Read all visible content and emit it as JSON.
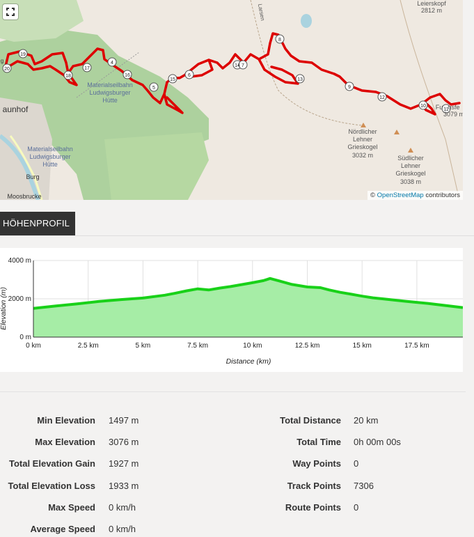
{
  "map": {
    "labels": {
      "peak_top": "Leierskopf",
      "peak_top_elev": "2812 m",
      "cable1_a": "Materialseilbahn",
      "cable1_b": "Ludwigsburger",
      "cable1_c": "Hütte",
      "cable2_a": "Materialseilbahn",
      "cable2_b": "Ludwigsburger",
      "cable2_c": "Hütte",
      "village": "aunhof",
      "burg": "Burg",
      "moos": "Moosbrucke",
      "nord_a": "Nördlicher",
      "nord_b": "Lehner",
      "nord_c": "Grieskogel",
      "nord_elev": "3032 m",
      "sud_a": "Südlicher",
      "sud_b": "Lehner",
      "sud_c": "Grieskogel",
      "sud_elev": "3038 m",
      "fund_a": "Fu",
      "fund_b": "usfe",
      "fund_elev": "3079 m",
      "road": "Larsen",
      "edge_g": "g"
    },
    "waypoints": [
      "20",
      "19",
      "18",
      "17",
      "4",
      "16",
      "5",
      "15",
      "6",
      "14",
      "7",
      "8",
      "13",
      "9",
      "12",
      "10",
      "11"
    ],
    "attribution": {
      "symbol": "©",
      "link": "OpenStreetMap",
      "suffix": "contributors"
    },
    "fullscreen_icon": "fullscreen-icon"
  },
  "tab": {
    "label": "HÖHENPROFIL"
  },
  "chart_data": {
    "type": "area",
    "title": "",
    "xlabel": "Distance (km)",
    "ylabel": "Elevation (m)",
    "x_ticks": [
      "0 km",
      "2.5 km",
      "5 km",
      "7.5 km",
      "10 km",
      "12.5 km",
      "15 km",
      "17.5 km"
    ],
    "y_ticks": [
      "0 m",
      "2000 m",
      "4000 m"
    ],
    "xlim": [
      0,
      19.6
    ],
    "ylim": [
      0,
      4000
    ],
    "grid": true,
    "series": [
      {
        "x": [
          0,
          1,
          2,
          3,
          4,
          5,
          6,
          6.5,
          7,
          7.5,
          8,
          8.5,
          9,
          9.5,
          10,
          10.5,
          10.8,
          11.2,
          11.8,
          12.5,
          13.1,
          13.5,
          14,
          14.5,
          15,
          15.5,
          16,
          17,
          18,
          19,
          19.6
        ],
        "y": [
          1500,
          1620,
          1740,
          1860,
          1960,
          2040,
          2190,
          2300,
          2420,
          2520,
          2460,
          2560,
          2640,
          2740,
          2840,
          2950,
          3060,
          2940,
          2750,
          2620,
          2580,
          2460,
          2340,
          2240,
          2140,
          2050,
          1990,
          1870,
          1760,
          1620,
          1540
        ]
      }
    ],
    "colors": {
      "line": "#19d119",
      "fill": "#a6eda6"
    }
  },
  "stats": {
    "left": [
      {
        "label": "Min Elevation",
        "value": "1497 m"
      },
      {
        "label": "Max Elevation",
        "value": "3076 m"
      },
      {
        "label": "Total Elevation Gain",
        "value": "1927 m"
      },
      {
        "label": "Total Elevation Loss",
        "value": "1933 m"
      },
      {
        "label": "Max Speed",
        "value": "0 km/h"
      },
      {
        "label": "Average Speed",
        "value": "0 km/h"
      }
    ],
    "right": [
      {
        "label": "Total Distance",
        "value": "20 km"
      },
      {
        "label": "Total Time",
        "value": "0h 00m 00s"
      },
      {
        "label": "Way Points",
        "value": "0"
      },
      {
        "label": "Track Points",
        "value": "7306"
      },
      {
        "label": "Route Points",
        "value": "0"
      }
    ]
  }
}
